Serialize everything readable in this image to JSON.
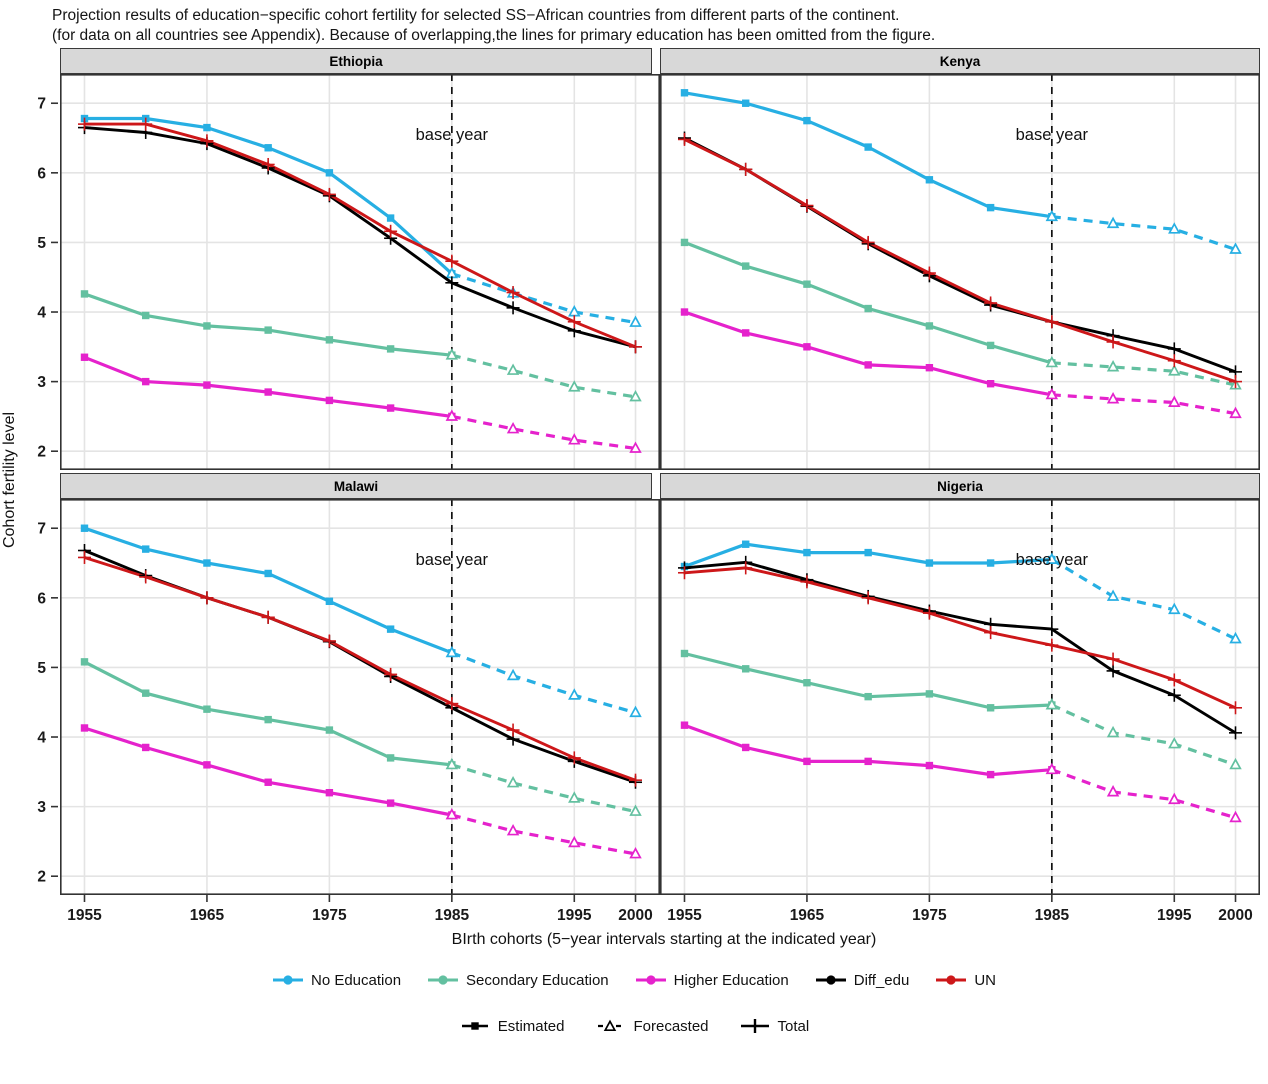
{
  "title": {
    "line1": "Projection results of education−specific cohort fertility for selected SS−African countries from different parts of the continent.",
    "line2": "(for data on all countries see Appendix). Because of overlapping,the lines for primary education has been omitted from the figure."
  },
  "chart_data": {
    "type": "line",
    "xlabel": "BIrth cohorts (5−year intervals starting at the indicated year)",
    "ylabel": "Cohort fertility level",
    "x_ticks": [
      1955,
      1965,
      1975,
      1985,
      1995,
      2000
    ],
    "y_ticks": [
      7,
      6,
      5,
      4,
      3,
      2
    ],
    "x_domain": [
      1953,
      2002
    ],
    "y_domain": [
      1.73,
      7.42
    ],
    "base_year": 1985,
    "annotation": "base year",
    "years_estimated": [
      1955,
      1960,
      1965,
      1970,
      1975,
      1980,
      1985
    ],
    "years_forecast": [
      1985,
      1990,
      1995,
      2000
    ],
    "years_total": [
      1955,
      1960,
      1965,
      1970,
      1975,
      1980,
      1985,
      1990,
      1995,
      2000
    ],
    "grid_color": "#e4e4e4",
    "series_meta": [
      {
        "id": "no_education",
        "label": "No Education",
        "color": "#27AFE3",
        "kind": "education"
      },
      {
        "id": "secondary",
        "label": "Secondary Education",
        "color": "#63C0A0",
        "kind": "education"
      },
      {
        "id": "higher",
        "label": "Higher Education",
        "color": "#E522CC",
        "kind": "education"
      },
      {
        "id": "diff_edu",
        "label": "Diff_edu",
        "color": "#000000",
        "kind": "total"
      },
      {
        "id": "un",
        "label": "UN",
        "color": "#CD1719",
        "kind": "total"
      }
    ],
    "marker_legend": [
      {
        "id": "estimated",
        "label": "Estimated",
        "marker": "square"
      },
      {
        "id": "forecasted",
        "label": "Forecasted",
        "marker": "triangle"
      },
      {
        "id": "total",
        "label": "Total",
        "marker": "plus"
      }
    ],
    "panels": [
      {
        "name": "Ethiopia",
        "series": {
          "no_education": {
            "estimated": [
              6.78,
              6.78,
              6.65,
              6.36,
              6.0,
              5.35,
              4.55
            ],
            "forecasted": [
              4.55,
              4.27,
              4.0,
              3.85
            ]
          },
          "secondary": {
            "estimated": [
              4.26,
              3.95,
              3.8,
              3.74,
              3.6,
              3.47,
              3.38
            ],
            "forecasted": [
              3.38,
              3.16,
              2.92,
              2.78
            ]
          },
          "higher": {
            "estimated": [
              3.35,
              3.0,
              2.95,
              2.85,
              2.73,
              2.62,
              2.5
            ],
            "forecasted": [
              2.5,
              2.32,
              2.16,
              2.04
            ]
          },
          "diff_edu": {
            "total": [
              6.65,
              6.58,
              6.42,
              6.07,
              5.67,
              5.06,
              4.42,
              4.06,
              3.73,
              3.5
            ]
          },
          "un": {
            "total": [
              6.7,
              6.7,
              6.46,
              6.12,
              5.69,
              5.16,
              4.73,
              4.28,
              3.86,
              3.5
            ]
          }
        }
      },
      {
        "name": "Kenya",
        "series": {
          "no_education": {
            "estimated": [
              7.15,
              7.0,
              6.75,
              6.37,
              5.9,
              5.5,
              5.37
            ],
            "forecasted": [
              5.37,
              5.27,
              5.19,
              4.9
            ]
          },
          "secondary": {
            "estimated": [
              5.0,
              4.66,
              4.4,
              4.05,
              3.8,
              3.52,
              3.27
            ],
            "forecasted": [
              3.27,
              3.21,
              3.15,
              2.95
            ]
          },
          "higher": {
            "estimated": [
              4.0,
              3.7,
              3.5,
              3.24,
              3.2,
              2.97,
              2.81
            ],
            "forecasted": [
              2.81,
              2.75,
              2.7,
              2.54
            ]
          },
          "diff_edu": {
            "total": [
              6.5,
              6.05,
              5.52,
              4.98,
              4.52,
              4.1,
              3.86,
              3.66,
              3.47,
              3.14
            ]
          },
          "un": {
            "total": [
              6.48,
              6.05,
              5.53,
              5.0,
              4.56,
              4.13,
              3.86,
              3.57,
              3.3,
              3.0
            ]
          }
        }
      },
      {
        "name": "Malawi",
        "series": {
          "no_education": {
            "estimated": [
              7.0,
              6.7,
              6.5,
              6.35,
              5.95,
              5.55,
              5.21
            ],
            "forecasted": [
              5.21,
              4.88,
              4.6,
              4.35
            ]
          },
          "secondary": {
            "estimated": [
              5.08,
              4.63,
              4.4,
              4.25,
              4.1,
              3.7,
              3.6
            ],
            "forecasted": [
              3.6,
              3.34,
              3.12,
              2.93
            ]
          },
          "higher": {
            "estimated": [
              4.13,
              3.85,
              3.6,
              3.35,
              3.2,
              3.05,
              2.88
            ],
            "forecasted": [
              2.88,
              2.65,
              2.48,
              2.32
            ]
          },
          "diff_edu": {
            "total": [
              6.68,
              6.32,
              6.0,
              5.72,
              5.37,
              4.87,
              4.42,
              3.97,
              3.65,
              3.35
            ]
          },
          "un": {
            "total": [
              6.58,
              6.3,
              6.0,
              5.72,
              5.38,
              4.9,
              4.48,
              4.1,
              3.7,
              3.38
            ]
          }
        }
      },
      {
        "name": "Nigeria",
        "series": {
          "no_education": {
            "estimated": [
              6.45,
              6.77,
              6.65,
              6.65,
              6.5,
              6.5,
              6.55
            ],
            "forecasted": [
              6.55,
              6.02,
              5.83,
              5.41
            ]
          },
          "secondary": {
            "estimated": [
              5.2,
              4.98,
              4.78,
              4.58,
              4.62,
              4.42,
              4.46
            ],
            "forecasted": [
              4.46,
              4.06,
              3.9,
              3.6
            ]
          },
          "higher": {
            "estimated": [
              4.17,
              3.85,
              3.65,
              3.65,
              3.59,
              3.46,
              3.53
            ],
            "forecasted": [
              3.53,
              3.21,
              3.1,
              2.84
            ]
          },
          "diff_edu": {
            "total": [
              6.43,
              6.51,
              6.26,
              6.02,
              5.81,
              5.62,
              5.55,
              4.95,
              4.6,
              4.06
            ]
          },
          "un": {
            "total": [
              6.36,
              6.43,
              6.23,
              6.0,
              5.78,
              5.5,
              5.32,
              5.12,
              4.82,
              4.42
            ]
          }
        }
      }
    ]
  }
}
